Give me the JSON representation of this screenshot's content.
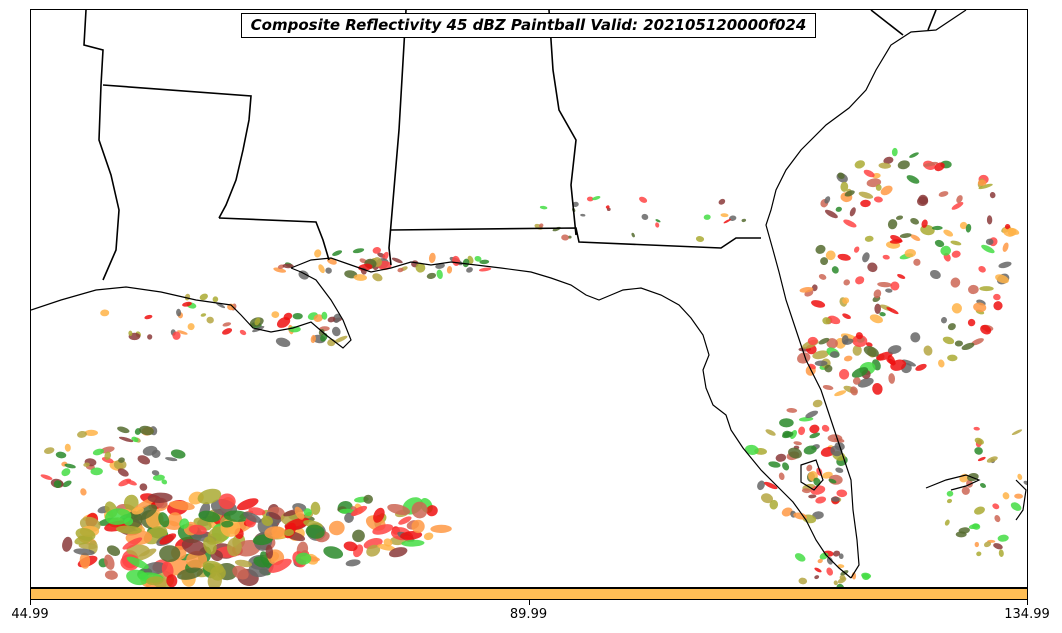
{
  "title": "Composite Reflectivity 45 dBZ Paintball Valid: 202105120000f024",
  "colorbar": {
    "color": "#ffbe55",
    "ticks": [
      {
        "value": 44.99,
        "label": "44.99"
      },
      {
        "value": 89.99,
        "label": "89.99"
      },
      {
        "value": 134.99,
        "label": "134.99"
      }
    ],
    "range": [
      44.99,
      134.99
    ]
  },
  "paintball_colors": [
    "#ff4444",
    "#ee1111",
    "#44dd44",
    "#2a8a2a",
    "#8b3a3a",
    "#ff9944",
    "#ffb347",
    "#aaaa33",
    "#556b2f",
    "#666666",
    "#b5a642",
    "#cc6655"
  ],
  "map": {
    "lines": [
      "state-borders",
      "coastline"
    ],
    "fill": "#ffffff"
  }
}
